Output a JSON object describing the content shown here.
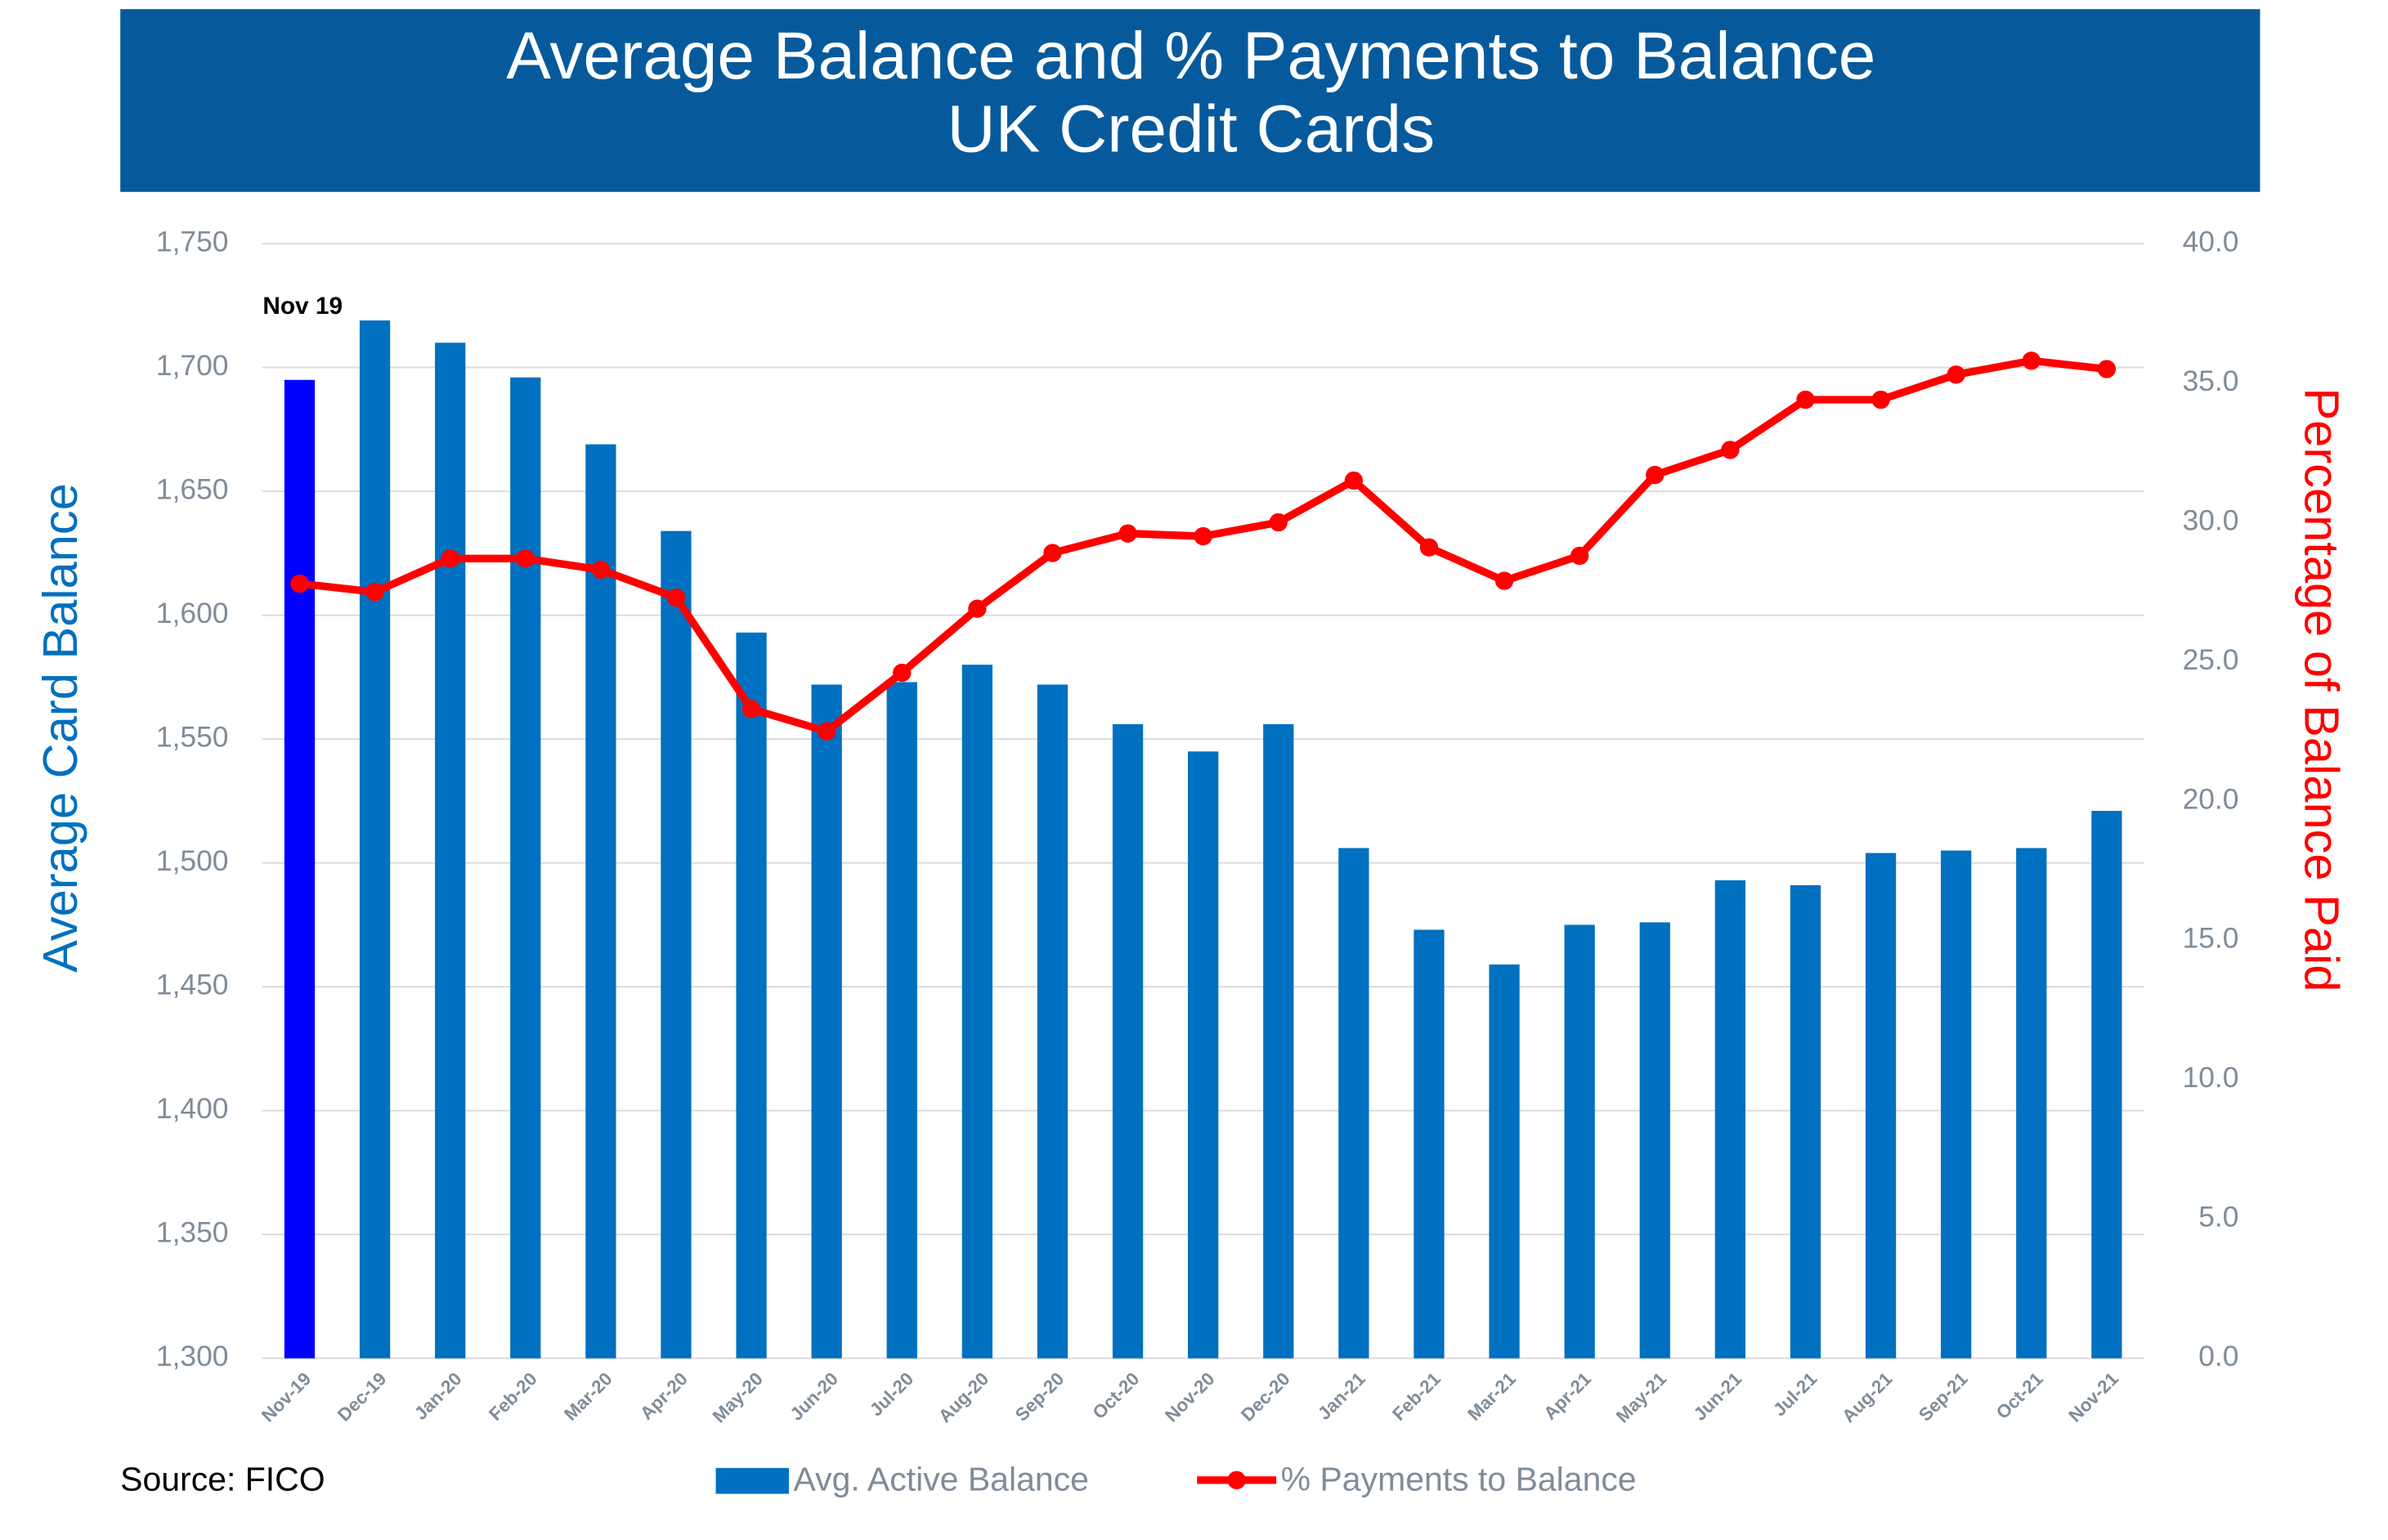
{
  "chart_data": {
    "type": "bar-line",
    "title": "Average Balance and % Payments to Balance",
    "subtitle": "UK Credit Cards",
    "y_label": "Average Card Balance",
    "y2_label": "Percentage of Balance Paid",
    "source": "Source: FICO",
    "annotation": "Nov 19",
    "categories": [
      "Nov-19",
      "Dec-19",
      "Jan-20",
      "Feb-20",
      "Mar-20",
      "Apr-20",
      "May-20",
      "Jun-20",
      "Jul-20",
      "Aug-20",
      "Sep-20",
      "Oct-20",
      "Nov-20",
      "Dec-20",
      "Jan-21",
      "Feb-21",
      "Mar-21",
      "Apr-21",
      "May-21",
      "Jun-21",
      "Jul-21",
      "Aug-21",
      "Sep-21",
      "Oct-21",
      "Nov-21"
    ],
    "series": [
      {
        "name": "Avg. Active Balance",
        "type": "bar",
        "color": "#0070c0",
        "colors": [
          "#0000ff",
          "#0070c0",
          "#0070c0",
          "#0070c0",
          "#0070c0",
          "#0070c0",
          "#0070c0",
          "#0070c0",
          "#0070c0",
          "#0070c0",
          "#0070c0",
          "#0070c0",
          "#0070c0",
          "#0070c0",
          "#0070c0",
          "#0070c0",
          "#0070c0",
          "#0070c0",
          "#0070c0",
          "#0070c0",
          "#0070c0",
          "#0070c0",
          "#0070c0",
          "#0070c0",
          "#0070c0"
        ],
        "values": [
          1695,
          1719,
          1710,
          1696,
          1669,
          1634,
          1593,
          1572,
          1573,
          1580,
          1572,
          1556,
          1545,
          1556,
          1506,
          1473,
          1459,
          1475,
          1476,
          1493,
          1491,
          1504,
          1505,
          1506,
          1521
        ]
      },
      {
        "name": "% Payments to Balance",
        "type": "line",
        "axis": "y2",
        "color": "#ff0000",
        "values": [
          27.8,
          27.5,
          28.7,
          28.7,
          28.3,
          27.3,
          23.3,
          22.5,
          24.6,
          26.9,
          28.9,
          29.6,
          29.5,
          30.0,
          31.5,
          29.1,
          27.9,
          28.8,
          31.7,
          32.6,
          34.4,
          34.4,
          35.3,
          35.8,
          35.5
        ]
      }
    ],
    "ylim": [
      1300,
      1750
    ],
    "yticks": [
      {
        "value": 1300,
        "label": "1,300"
      },
      {
        "value": 1350,
        "label": "1,350"
      },
      {
        "value": 1400,
        "label": "1,400"
      },
      {
        "value": 1450,
        "label": "1,450"
      },
      {
        "value": 1500,
        "label": "1,500"
      },
      {
        "value": 1550,
        "label": "1,550"
      },
      {
        "value": 1600,
        "label": "1,600"
      },
      {
        "value": 1650,
        "label": "1,650"
      },
      {
        "value": 1700,
        "label": "1,700"
      },
      {
        "value": 1750,
        "label": "1,750"
      }
    ],
    "y2lim": [
      0,
      40
    ],
    "y2ticks": [
      {
        "value": 0,
        "label": "0.0"
      },
      {
        "value": 5,
        "label": "5.0"
      },
      {
        "value": 10,
        "label": "10.0"
      },
      {
        "value": 15,
        "label": "15.0"
      },
      {
        "value": 20,
        "label": "20.0"
      },
      {
        "value": 25,
        "label": "25.0"
      },
      {
        "value": 30,
        "label": "30.0"
      },
      {
        "value": 35,
        "label": "35.0"
      },
      {
        "value": 40,
        "label": "40.0"
      }
    ],
    "grid": true,
    "legend": "bottom"
  }
}
